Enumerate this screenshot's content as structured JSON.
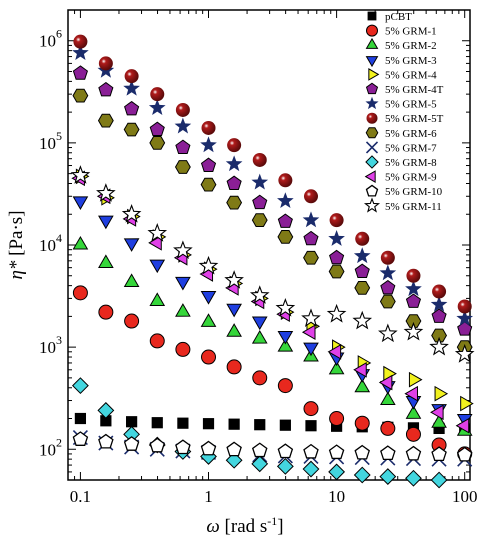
{
  "chart_data": {
    "type": "scatter",
    "x_scale": "log",
    "y_scale": "log",
    "xlim": [
      0.08,
      110
    ],
    "ylim": [
      50,
      2000000
    ],
    "xlabel_symbol": "ω",
    "xlabel_units": " [rad s",
    "xlabel_sup": "-1",
    "xlabel_close": "]",
    "ylabel_symbol": "η*",
    "ylabel_units": " [Pa·s]",
    "x_ticks": [
      {
        "value": 0.1,
        "label": "0.1"
      },
      {
        "value": 1,
        "label": "1"
      },
      {
        "value": 10,
        "label": "10"
      },
      {
        "value": 100,
        "label": "100"
      }
    ],
    "y_ticks": [
      {
        "value": 100,
        "base": "10",
        "exp": "2"
      },
      {
        "value": 1000,
        "base": "10",
        "exp": "3"
      },
      {
        "value": 10000,
        "base": "10",
        "exp": "4"
      },
      {
        "value": 100000,
        "base": "10",
        "exp": "5"
      },
      {
        "value": 1000000,
        "base": "10",
        "exp": "6"
      }
    ],
    "legend_position": "top-right",
    "grid": false,
    "x": [
      0.1,
      0.158,
      0.251,
      0.398,
      0.631,
      1.0,
      1.585,
      2.512,
      3.981,
      6.31,
      10.0,
      15.85,
      25.12,
      39.81,
      63.1,
      100.0
    ],
    "series": [
      {
        "name": "pCBT",
        "marker": "square",
        "color": "#000000",
        "values": [
          200,
          190,
          186,
          182,
          180,
          178,
          176,
          174,
          172,
          170,
          168,
          166,
          164,
          162,
          160,
          158
        ]
      },
      {
        "name": "5% GRM-1",
        "marker": "circle",
        "color": "#e8281e",
        "values": [
          3400,
          2200,
          1800,
          1150,
          950,
          800,
          640,
          500,
          420,
          250,
          200,
          180,
          160,
          140,
          110,
          90
        ]
      },
      {
        "name": "5% GRM-2",
        "marker": "triangle-up",
        "color": "#35d63a",
        "values": [
          10000,
          6600,
          4300,
          2800,
          2200,
          1750,
          1400,
          1200,
          1000,
          800,
          600,
          400,
          300,
          220,
          180,
          150
        ]
      },
      {
        "name": "5% GRM-3",
        "marker": "triangle-down",
        "color": "#1f3fe0",
        "values": [
          27000,
          17500,
          10500,
          6500,
          4400,
          3200,
          2400,
          1800,
          1300,
          1000,
          800,
          550,
          420,
          300,
          250,
          200
        ]
      },
      {
        "name": "5% GRM-4",
        "marker": "triangle-right",
        "color": "#f2f21e",
        "values": [
          47000,
          29000,
          19000,
          12000,
          8000,
          5800,
          4200,
          3000,
          2200,
          1600,
          1000,
          700,
          550,
          480,
          350,
          280
        ]
      },
      {
        "name": "5% GRM-4T",
        "marker": "pentagon",
        "color": "#8a1f96",
        "values": [
          480000,
          330000,
          215000,
          135000,
          90000,
          60000,
          40000,
          26000,
          17000,
          11500,
          7500,
          5500,
          3800,
          2800,
          2000,
          1500
        ]
      },
      {
        "name": "5% GRM-5",
        "marker": "star",
        "color": "#1a2b6b",
        "values": [
          760000,
          510000,
          340000,
          220000,
          145000,
          95000,
          62000,
          41000,
          27000,
          17500,
          11500,
          7800,
          5300,
          3700,
          2600,
          1900
        ]
      },
      {
        "name": "5% GRM-5T",
        "marker": "ball",
        "color": "#b01b1b",
        "values": [
          980000,
          600000,
          450000,
          300000,
          210000,
          140000,
          95000,
          68000,
          43000,
          30000,
          17500,
          11500,
          7500,
          5000,
          3500,
          2500
        ]
      },
      {
        "name": "5% GRM-6",
        "marker": "hexagon",
        "color": "#7f7a16",
        "values": [
          290000,
          165000,
          135000,
          100000,
          58000,
          39000,
          26000,
          17500,
          12000,
          7500,
          5500,
          3800,
          2800,
          1800,
          1300,
          1000
        ]
      },
      {
        "name": "5% GRM-7",
        "marker": "x",
        "color": "#1a2b6b",
        "values": [
          130000,
          115000,
          105000,
          100000,
          96000,
          93000,
          90000,
          88000,
          86000,
          85000,
          84000,
          83000,
          82000,
          81000,
          80000,
          80000
        ],
        "scale_note": "values x 0.001"
      },
      {
        "name": "5% GRM-8",
        "marker": "diamond",
        "color": "#43d6df",
        "values": [
          420,
          240,
          140,
          110,
          95,
          85,
          78,
          72,
          68,
          64,
          60,
          56,
          54,
          52,
          50,
          48
        ]
      },
      {
        "name": "5% GRM-9",
        "marker": "triangle-left",
        "color": "#e040e8",
        "values": [
          45000,
          30000,
          18000,
          10500,
          7500,
          5200,
          3800,
          2800,
          2100,
          1400,
          900,
          600,
          450,
          350,
          230,
          170
        ]
      },
      {
        "name": "5% GRM-10",
        "marker": "open-pentagon",
        "color": "#000000",
        "values": [
          125,
          118,
          112,
          108,
          104,
          101,
          99,
          97,
          95,
          94,
          93,
          92,
          91,
          90,
          89,
          88
        ]
      },
      {
        "name": "5% GRM-11",
        "marker": "open-star",
        "color": "#000000",
        "values": [
          48000,
          32000,
          20000,
          13000,
          8800,
          6200,
          4500,
          3200,
          2400,
          1900,
          2100,
          1800,
          1350,
          1400,
          1000,
          850
        ]
      }
    ]
  }
}
